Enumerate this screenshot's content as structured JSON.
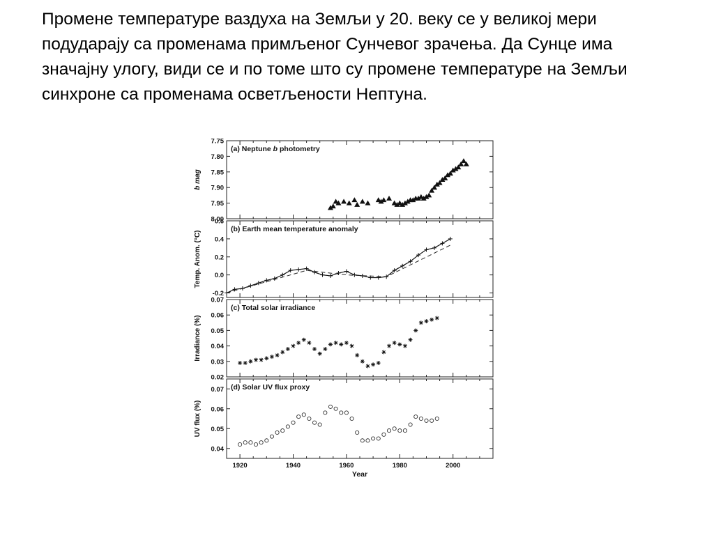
{
  "slide": {
    "paragraph": "Промене температуре ваздуха на Земљи у 20. веку се у великој мери подударају са променама примљеног  Сунчевог зрачења. Да Сунце има значајну улогу, види се и по томе што су промене температуре на Земљи синхроне са променама осветљености Нептуна."
  },
  "chart_data": [
    {
      "type": "scatter",
      "panel": "a",
      "title": "(a) Neptune b photometry",
      "xlabel": "",
      "ylabel": "b mag",
      "xlim": [
        1915,
        2015
      ],
      "ylim": [
        8.0,
        7.75
      ],
      "y_inverted": true,
      "yticks": [
        "7.75",
        "7.80",
        "7.85",
        "7.90",
        "7.95",
        "8.00"
      ],
      "marker": "filled-triangle",
      "series": [
        {
          "x": [
            1954,
            1955,
            1956,
            1957,
            1959,
            1961,
            1963,
            1964,
            1966,
            1968,
            1972,
            1973,
            1974,
            1976,
            1978,
            1979,
            1980,
            1981,
            1982,
            1983,
            1984,
            1985,
            1986,
            1987,
            1988,
            1989,
            1990,
            1991,
            1992,
            1993,
            1994,
            1995,
            1996,
            1997,
            1998,
            1999,
            2000,
            2001,
            2002,
            2003,
            2004,
            2005
          ],
          "y": [
            7.965,
            7.96,
            7.945,
            7.95,
            7.945,
            7.95,
            7.94,
            7.955,
            7.945,
            7.95,
            7.94,
            7.945,
            7.94,
            7.935,
            7.95,
            7.955,
            7.95,
            7.955,
            7.95,
            7.945,
            7.94,
            7.94,
            7.935,
            7.935,
            7.93,
            7.935,
            7.93,
            7.925,
            7.91,
            7.9,
            7.89,
            7.885,
            7.875,
            7.87,
            7.86,
            7.855,
            7.845,
            7.84,
            7.835,
            7.825,
            7.815,
            7.825
          ]
        }
      ]
    },
    {
      "type": "line",
      "panel": "b",
      "title": "(b) Earth mean temperature anomaly",
      "xlabel": "",
      "ylabel": "Temp. Anom. (°C)",
      "xlim": [
        1915,
        2015
      ],
      "ylim": [
        -0.25,
        0.6
      ],
      "yticks": [
        "-0.2",
        "0.0",
        "0.2",
        "0.4",
        "0.6"
      ],
      "series": [
        {
          "style": "solid-with-plus-markers",
          "x": [
            1915,
            1918,
            1921,
            1924,
            1927,
            1930,
            1933,
            1936,
            1939,
            1942,
            1945,
            1948,
            1951,
            1954,
            1957,
            1960,
            1963,
            1966,
            1969,
            1972,
            1975,
            1978,
            1981,
            1984,
            1987,
            1990,
            1993,
            1996,
            1999
          ],
          "y": [
            -0.2,
            -0.16,
            -0.15,
            -0.12,
            -0.09,
            -0.06,
            -0.04,
            0.0,
            0.05,
            0.06,
            0.07,
            0.03,
            0.0,
            -0.01,
            0.02,
            0.04,
            0.0,
            -0.01,
            -0.03,
            -0.03,
            -0.02,
            0.05,
            0.1,
            0.15,
            0.22,
            0.28,
            0.3,
            0.35,
            0.4
          ]
        },
        {
          "style": "dashed",
          "x": [
            1915,
            1945,
            1960,
            1975,
            1999
          ],
          "y": [
            -0.2,
            0.05,
            0.0,
            -0.02,
            0.33
          ]
        }
      ]
    },
    {
      "type": "scatter",
      "panel": "c",
      "title": "(c) Total solar irradiance",
      "xlabel": "",
      "ylabel": "Irradiance (%)",
      "xlim": [
        1915,
        2015
      ],
      "ylim": [
        0.02,
        0.07
      ],
      "yticks": [
        "0.02",
        "0.03",
        "0.04",
        "0.05",
        "0.06",
        "0.07"
      ],
      "marker": "asterisk",
      "series": [
        {
          "x": [
            1920,
            1922,
            1924,
            1926,
            1928,
            1930,
            1932,
            1934,
            1936,
            1938,
            1940,
            1942,
            1944,
            1946,
            1948,
            1950,
            1952,
            1954,
            1956,
            1958,
            1960,
            1962,
            1964,
            1966,
            1968,
            1970,
            1972,
            1974,
            1976,
            1978,
            1980,
            1982,
            1984,
            1986,
            1988,
            1990,
            1992,
            1994
          ],
          "y": [
            0.029,
            0.029,
            0.03,
            0.031,
            0.031,
            0.032,
            0.033,
            0.034,
            0.036,
            0.038,
            0.04,
            0.042,
            0.044,
            0.042,
            0.038,
            0.035,
            0.038,
            0.041,
            0.042,
            0.041,
            0.042,
            0.04,
            0.034,
            0.03,
            0.027,
            0.028,
            0.029,
            0.036,
            0.04,
            0.042,
            0.041,
            0.04,
            0.044,
            0.05,
            0.055,
            0.056,
            0.057,
            0.058
          ]
        }
      ]
    },
    {
      "type": "scatter",
      "panel": "d",
      "title": "(d) Solar UV flux proxy",
      "xlabel": "Year",
      "ylabel": "UV flux (%)",
      "xlim": [
        1915,
        2015
      ],
      "ylim": [
        0.035,
        0.075
      ],
      "yticks": [
        "0.04",
        "0.05",
        "0.06",
        "0.07"
      ],
      "xticks": [
        "1920",
        "1940",
        "1960",
        "1980",
        "2000"
      ],
      "marker": "open-circle",
      "series": [
        {
          "x": [
            1920,
            1922,
            1924,
            1926,
            1928,
            1930,
            1932,
            1934,
            1936,
            1938,
            1940,
            1942,
            1944,
            1946,
            1948,
            1950,
            1952,
            1954,
            1956,
            1958,
            1960,
            1962,
            1964,
            1966,
            1968,
            1970,
            1972,
            1974,
            1976,
            1978,
            1980,
            1982,
            1984,
            1986,
            1988,
            1990,
            1992,
            1994
          ],
          "y": [
            0.042,
            0.043,
            0.043,
            0.042,
            0.043,
            0.044,
            0.046,
            0.048,
            0.049,
            0.051,
            0.053,
            0.056,
            0.057,
            0.055,
            0.053,
            0.052,
            0.058,
            0.061,
            0.06,
            0.058,
            0.058,
            0.055,
            0.048,
            0.044,
            0.044,
            0.045,
            0.045,
            0.047,
            0.049,
            0.05,
            0.049,
            0.049,
            0.052,
            0.056,
            0.055,
            0.054,
            0.054,
            0.055
          ]
        }
      ]
    }
  ]
}
